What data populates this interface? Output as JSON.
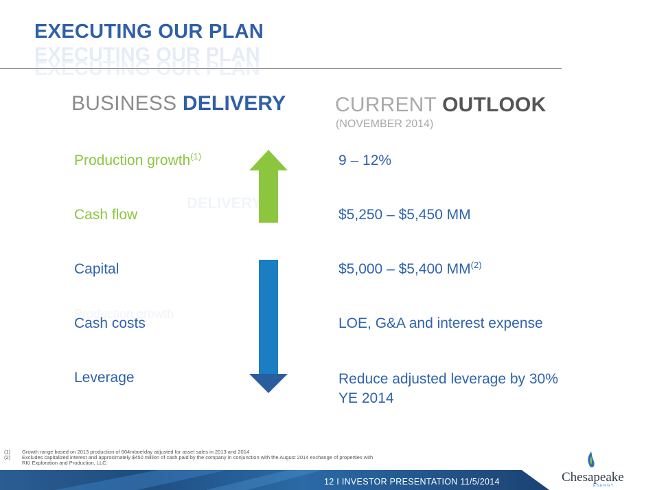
{
  "slide": {
    "title": "EXECUTING OUR PLAN"
  },
  "business_delivery": {
    "light": "BUSINESS ",
    "bold": "DELIVERY"
  },
  "current_outlook": {
    "light": "CURRENT ",
    "bold": "OUTLOOK",
    "subtitle": "(NOVEMBER 2014)"
  },
  "rows": [
    {
      "label": "Production growth",
      "sup": "(1)",
      "value": "9 – 12%",
      "value_sup": ""
    },
    {
      "label": "Cash flow",
      "sup": "",
      "value": "$5,250 – $5,450 MM",
      "value_sup": ""
    },
    {
      "label": "Capital",
      "sup": "",
      "value": "$5,000 – $5,400 MM",
      "value_sup": "(2)"
    },
    {
      "label": "Cash costs",
      "sup": "",
      "value": "LOE, G&A and interest expense",
      "value_sup": ""
    },
    {
      "label": "Leverage",
      "sup": "",
      "value": "Reduce adjusted leverage by 30%",
      "value_line2": "YE 2014",
      "value_sup": ""
    }
  ],
  "arrows": {
    "up_color": "#8cc63f",
    "down_color": "#1b7dc2",
    "down_head_color": "#2a5d9e"
  },
  "footnotes": [
    {
      "num": "(1)",
      "text": "Growth range based on 2013 production of 604mboe/day adjusted for asset sales in 2013 and 2014"
    },
    {
      "num": "(2)",
      "text": "Excludes capitalized interest and approximately $450 million of cash paid by the company in conjunction with the August 2014 exchange of properties with",
      "text2": "RKI Exploration and Production, LLC."
    }
  ],
  "footer": {
    "text": "12   I   INVESTOR PRESENTATION  11/5/2014"
  },
  "logo": {
    "name": "Chesapeake",
    "tagline": "ENERGY"
  },
  "colors": {
    "title_blue": "#2f5fa7",
    "label_green": "#8cc63f",
    "label_blue": "#2f63ad",
    "footer_navy": "#1d3e6e"
  }
}
